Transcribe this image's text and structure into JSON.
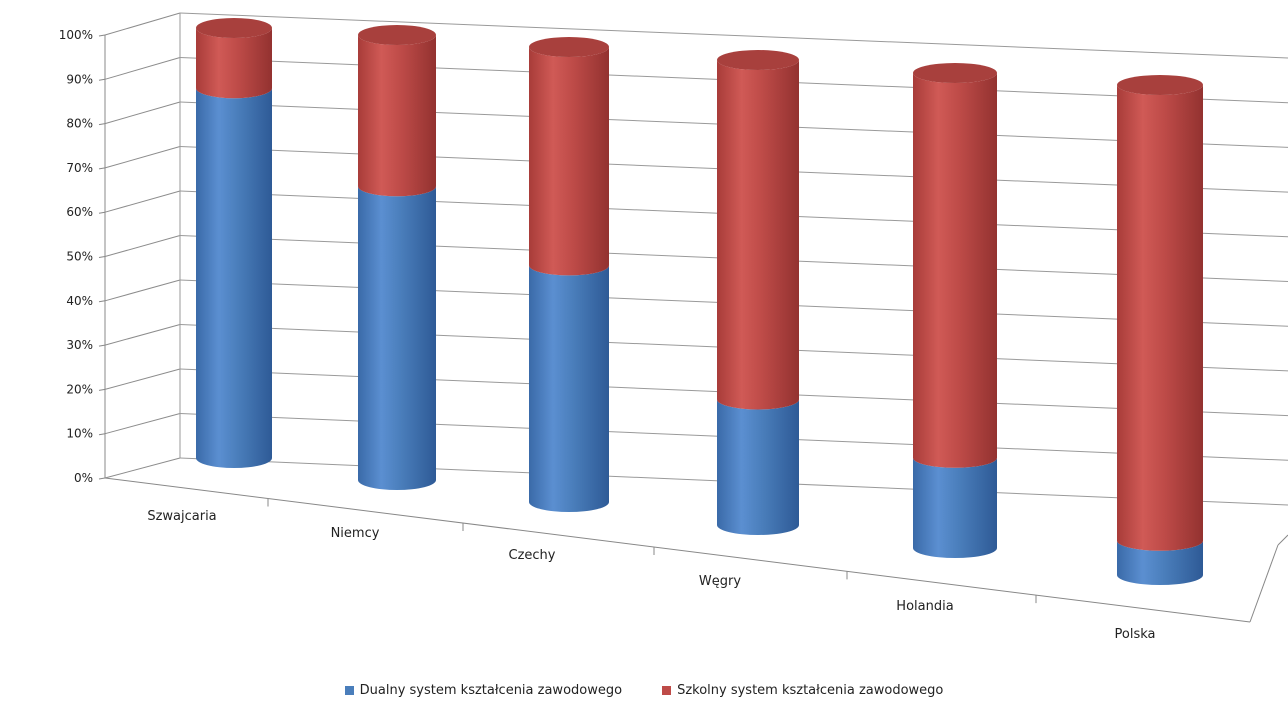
{
  "chart_data": {
    "type": "bar",
    "style": "3d-cylinder-stacked-100",
    "categories": [
      "Szwajcaria",
      "Niemcy",
      "Czechy",
      "Węgry",
      "Holandia",
      "Polska"
    ],
    "series": [
      {
        "name": "Dualny system kształcenia zawodowego",
        "color": "#4a7ebb",
        "values": [
          86,
          66,
          52,
          27,
          19,
          7
        ]
      },
      {
        "name": "Szkolny system kształcenia zawodowego",
        "color": "#be4b48",
        "values": [
          14,
          34,
          48,
          73,
          81,
          93
        ]
      }
    ],
    "y_ticks": [
      "0%",
      "10%",
      "20%",
      "30%",
      "40%",
      "50%",
      "60%",
      "70%",
      "80%",
      "90%",
      "100%"
    ],
    "ylim": [
      0,
      100
    ],
    "grid": true,
    "legend_position": "bottom"
  }
}
